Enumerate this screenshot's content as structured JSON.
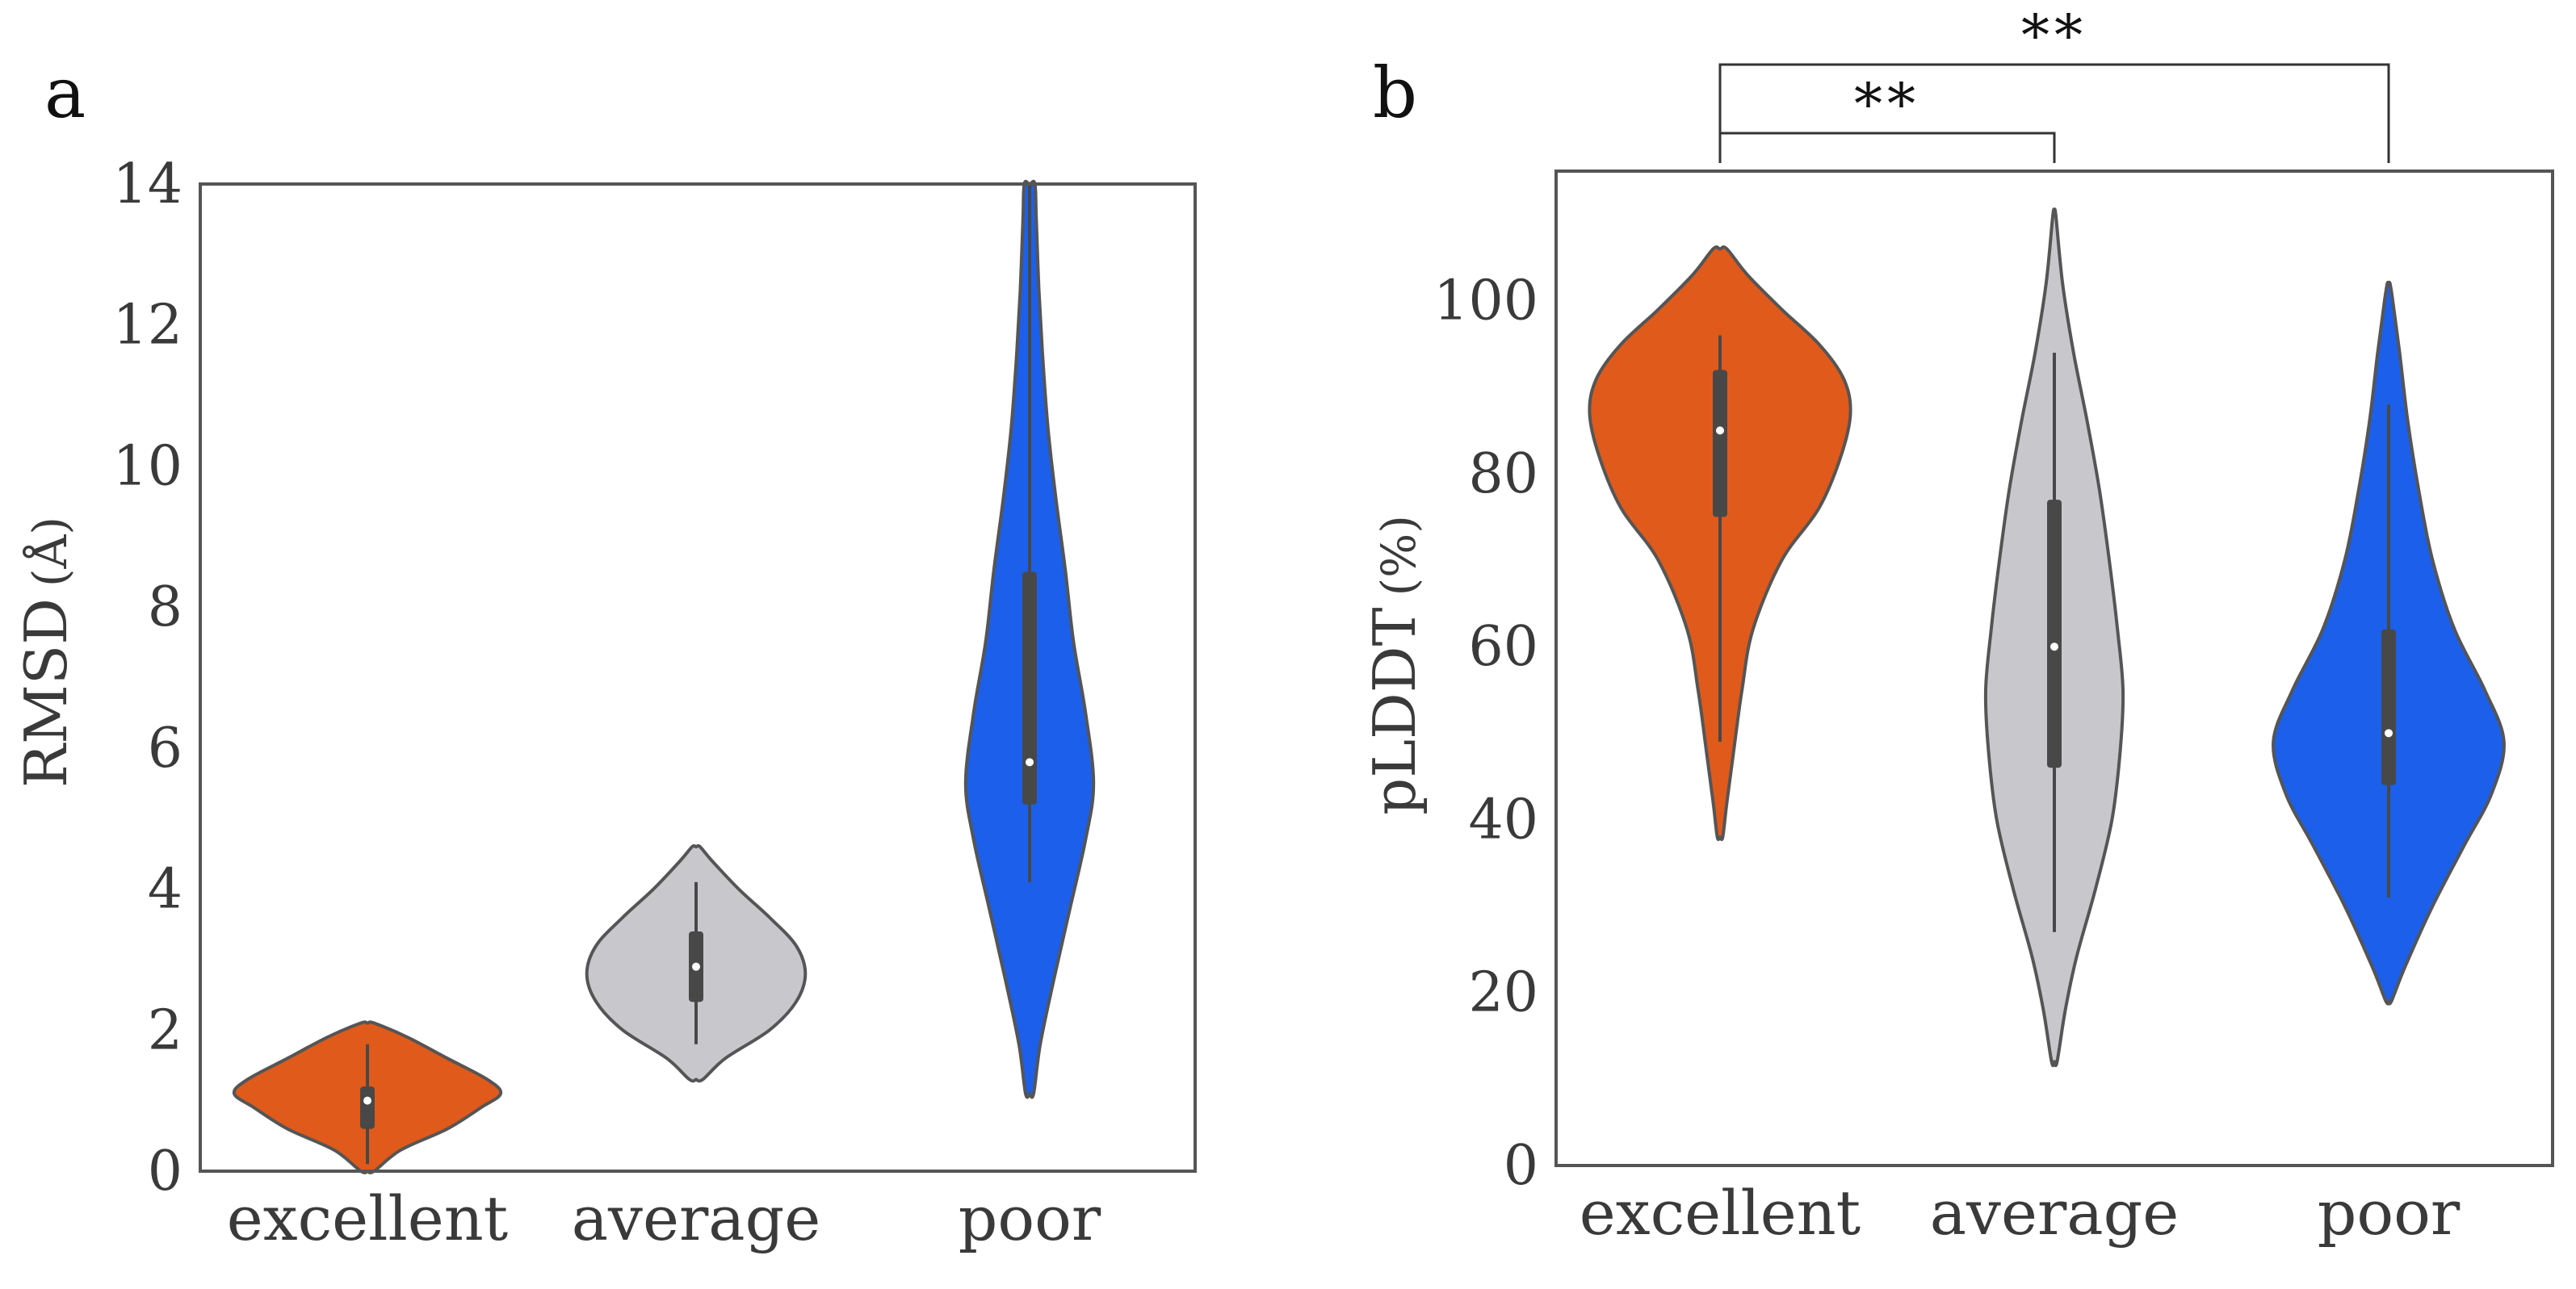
{
  "colors": {
    "excellent": "#E05A1B",
    "average": "#C8C8CC",
    "poor": "#1C5FEA",
    "outline": "#555555",
    "box": "#484848"
  },
  "chart_data": [
    {
      "panel": "a",
      "type": "violin",
      "categories": [
        "excellent",
        "average",
        "poor"
      ],
      "ylabel": "RMSD",
      "ylabel_unit": "(Å)",
      "ylim": [
        0,
        14
      ],
      "yticks": [
        0,
        2,
        4,
        6,
        8,
        10,
        12,
        14
      ],
      "grid": false,
      "series": [
        {
          "name": "excellent",
          "median": 1.0,
          "q1": 0.6,
          "q3": 1.2,
          "whisker_low": 0.1,
          "whisker_high": 1.8,
          "density": [
            [
              0.0,
              0.05
            ],
            [
              0.3,
              0.25
            ],
            [
              0.6,
              0.6
            ],
            [
              0.9,
              0.85
            ],
            [
              1.1,
              1.0
            ],
            [
              1.3,
              0.9
            ],
            [
              1.6,
              0.6
            ],
            [
              1.9,
              0.3
            ],
            [
              2.1,
              0.05
            ]
          ]
        },
        {
          "name": "average",
          "median": 2.9,
          "q1": 2.4,
          "q3": 3.4,
          "whisker_low": 1.8,
          "whisker_high": 4.1,
          "density": [
            [
              1.3,
              0.05
            ],
            [
              1.6,
              0.22
            ],
            [
              2.0,
              0.55
            ],
            [
              2.4,
              0.75
            ],
            [
              2.8,
              0.82
            ],
            [
              3.2,
              0.75
            ],
            [
              3.6,
              0.55
            ],
            [
              4.0,
              0.32
            ],
            [
              4.4,
              0.12
            ],
            [
              4.6,
              0.03
            ]
          ]
        },
        {
          "name": "poor",
          "median": 5.8,
          "q1": 5.2,
          "q3": 8.5,
          "whisker_low": 4.1,
          "whisker_high": 14.0,
          "density": [
            [
              1.1,
              0.03
            ],
            [
              1.8,
              0.08
            ],
            [
              2.7,
              0.18
            ],
            [
              3.7,
              0.3
            ],
            [
              4.7,
              0.42
            ],
            [
              5.5,
              0.48
            ],
            [
              6.5,
              0.42
            ],
            [
              7.5,
              0.33
            ],
            [
              8.5,
              0.27
            ],
            [
              9.5,
              0.2
            ],
            [
              10.5,
              0.14
            ],
            [
              11.5,
              0.1
            ],
            [
              12.5,
              0.07
            ],
            [
              13.5,
              0.05
            ],
            [
              14.0,
              0.04
            ]
          ]
        }
      ]
    },
    {
      "panel": "b",
      "type": "violin",
      "categories": [
        "excellent",
        "average",
        "poor"
      ],
      "ylabel": "pLDDT",
      "ylabel_unit": "(%)",
      "ylim": [
        0,
        115
      ],
      "yticks": [
        0,
        20,
        40,
        60,
        80,
        100
      ],
      "grid": false,
      "significance": [
        {
          "from": "excellent",
          "to": "average",
          "label": "**"
        },
        {
          "from": "excellent",
          "to": "poor",
          "label": "**"
        }
      ],
      "series": [
        {
          "name": "excellent",
          "median": 85,
          "q1": 75,
          "q3": 92,
          "whisker_low": 49,
          "whisker_high": 96,
          "density": [
            [
              38,
              0.02
            ],
            [
              42,
              0.05
            ],
            [
              48,
              0.1
            ],
            [
              55,
              0.16
            ],
            [
              62,
              0.24
            ],
            [
              70,
              0.45
            ],
            [
              76,
              0.72
            ],
            [
              82,
              0.88
            ],
            [
              87,
              0.95
            ],
            [
              91,
              0.9
            ],
            [
              95,
              0.72
            ],
            [
              99,
              0.45
            ],
            [
              103,
              0.2
            ],
            [
              106,
              0.05
            ]
          ]
        },
        {
          "name": "average",
          "median": 60,
          "q1": 46,
          "q3": 77,
          "whisker_low": 27,
          "whisker_high": 94,
          "density": [
            [
              12,
              0.02
            ],
            [
              18,
              0.08
            ],
            [
              24,
              0.16
            ],
            [
              32,
              0.3
            ],
            [
              40,
              0.42
            ],
            [
              48,
              0.48
            ],
            [
              55,
              0.5
            ],
            [
              62,
              0.46
            ],
            [
              70,
              0.4
            ],
            [
              78,
              0.33
            ],
            [
              86,
              0.24
            ],
            [
              94,
              0.14
            ],
            [
              102,
              0.06
            ],
            [
              110,
              0.01
            ]
          ]
        },
        {
          "name": "poor",
          "median": 50,
          "q1": 44,
          "q3": 62,
          "whisker_low": 31,
          "whisker_high": 88,
          "density": [
            [
              19,
              0.02
            ],
            [
              23,
              0.12
            ],
            [
              30,
              0.32
            ],
            [
              37,
              0.55
            ],
            [
              43,
              0.75
            ],
            [
              49,
              0.84
            ],
            [
              55,
              0.7
            ],
            [
              62,
              0.48
            ],
            [
              70,
              0.32
            ],
            [
              78,
              0.22
            ],
            [
              86,
              0.14
            ],
            [
              94,
              0.08
            ],
            [
              100,
              0.03
            ],
            [
              102,
              0.01
            ]
          ]
        }
      ]
    }
  ]
}
